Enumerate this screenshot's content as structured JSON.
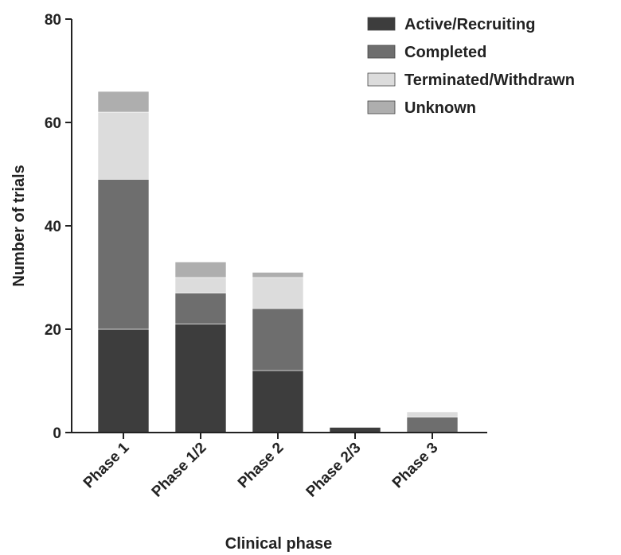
{
  "chart_data": {
    "type": "bar",
    "stacked": true,
    "categories": [
      "Phase 1",
      "Phase 1/2",
      "Phase 2",
      "Phase 2/3",
      "Phase 3"
    ],
    "series": [
      {
        "name": "Active/Recruiting",
        "values": [
          20,
          21,
          12,
          1,
          0
        ],
        "color": "#3d3d3d"
      },
      {
        "name": "Completed",
        "values": [
          29,
          6,
          12,
          0,
          3
        ],
        "color": "#6e6e6e"
      },
      {
        "name": "Terminated/Withdrawn",
        "values": [
          13,
          3,
          6,
          0,
          1
        ],
        "color": "#dcdcdc"
      },
      {
        "name": "Unknown",
        "values": [
          4,
          3,
          1,
          0,
          0
        ],
        "color": "#aeaeae"
      }
    ],
    "xlabel": "Clinical phase",
    "ylabel": "Number of trials",
    "ylim": [
      0,
      80
    ],
    "yticks": [
      0,
      20,
      40,
      60,
      80
    ],
    "grid": false,
    "legend_position": "top-right"
  }
}
